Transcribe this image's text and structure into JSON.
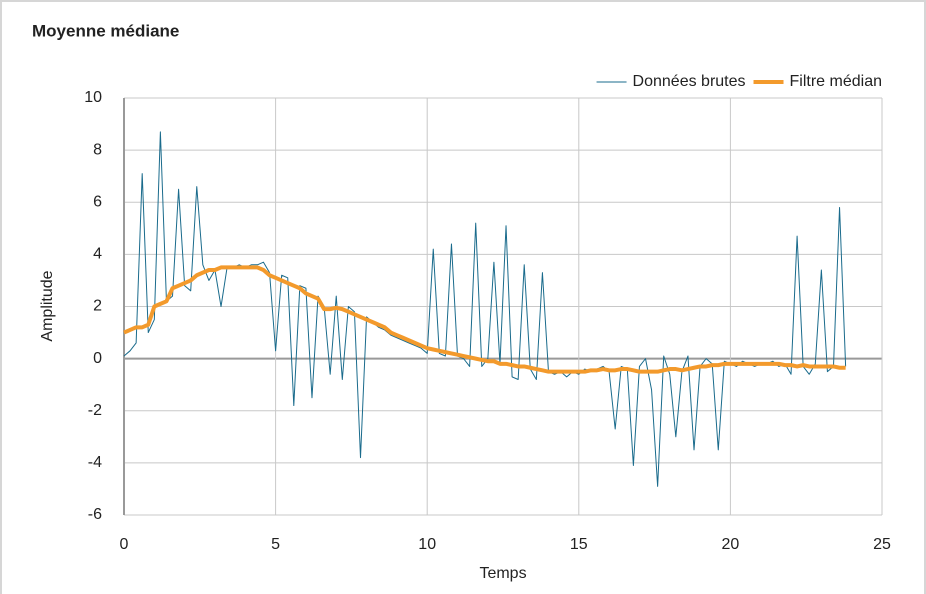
{
  "chart_data": {
    "type": "line",
    "title": "Moyenne médiane",
    "x_label": "Temps",
    "y_label": "Amplitude",
    "x": [
      0,
      0.2,
      0.4,
      0.6,
      0.8,
      1,
      1.2,
      1.4,
      1.6,
      1.8,
      2,
      2.2,
      2.4,
      2.6,
      2.8,
      3,
      3.2,
      3.4,
      3.6,
      3.8,
      4,
      4.2,
      4.4,
      4.6,
      4.8,
      5,
      5.2,
      5.4,
      5.6,
      5.8,
      6,
      6.2,
      6.4,
      6.6,
      6.8,
      7,
      7.2,
      7.4,
      7.6,
      7.8,
      8,
      8.2,
      8.4,
      8.6,
      8.8,
      9,
      9.2,
      9.4,
      9.6,
      9.8,
      10,
      10.2,
      10.4,
      10.6,
      10.8,
      11,
      11.2,
      11.4,
      11.6,
      11.8,
      12,
      12.2,
      12.4,
      12.6,
      12.8,
      13,
      13.2,
      13.4,
      13.6,
      13.8,
      14,
      14.2,
      14.4,
      14.6,
      14.8,
      15,
      15.2,
      15.4,
      15.6,
      15.8,
      16,
      16.2,
      16.4,
      16.6,
      16.8,
      17,
      17.2,
      17.4,
      17.6,
      17.8,
      18,
      18.2,
      18.4,
      18.6,
      18.8,
      19,
      19.2,
      19.4,
      19.6,
      19.8,
      20,
      20.2,
      20.4,
      20.6,
      20.8,
      21,
      21.2,
      21.4,
      21.6,
      21.8,
      22,
      22.2,
      22.4,
      22.6,
      22.8,
      23,
      23.2,
      23.4,
      23.6,
      23.8
    ],
    "series": [
      {
        "name": "Données brutes",
        "color": "#1a6b8c",
        "values": [
          0.1,
          0.3,
          0.6,
          7.1,
          1.0,
          1.5,
          8.7,
          2.2,
          2.4,
          6.5,
          2.8,
          2.6,
          6.6,
          3.6,
          3.0,
          3.4,
          2.0,
          3.5,
          3.5,
          3.6,
          3.5,
          3.6,
          3.6,
          3.7,
          3.3,
          0.3,
          3.2,
          3.1,
          -1.8,
          2.8,
          2.7,
          -1.5,
          2.4,
          2.0,
          -0.6,
          2.4,
          -0.8,
          2.0,
          1.8,
          -3.8,
          1.6,
          1.4,
          1.2,
          1.1,
          0.9,
          0.8,
          0.7,
          0.6,
          0.5,
          0.4,
          0.2,
          4.2,
          0.2,
          0.1,
          4.4,
          0.1,
          0.0,
          -0.3,
          5.2,
          -0.3,
          0.0,
          3.7,
          -0.2,
          5.1,
          -0.7,
          -0.8,
          3.6,
          -0.4,
          -0.8,
          3.3,
          -0.5,
          -0.6,
          -0.5,
          -0.7,
          -0.5,
          -0.6,
          -0.4,
          -0.5,
          -0.4,
          -0.3,
          -0.5,
          -2.7,
          -0.3,
          -0.4,
          -4.1,
          -0.3,
          0.0,
          -1.2,
          -4.9,
          0.1,
          -0.6,
          -3.0,
          -0.5,
          0.1,
          -3.5,
          -0.3,
          0.0,
          -0.2,
          -3.5,
          -0.1,
          -0.2,
          -0.3,
          -0.1,
          -0.2,
          -0.3,
          -0.2,
          -0.2,
          -0.1,
          -0.3,
          -0.2,
          -0.6,
          4.7,
          -0.3,
          -0.6,
          -0.2,
          3.4,
          -0.5,
          -0.3,
          5.8,
          -0.3
        ]
      },
      {
        "name": "Filtre médian",
        "color": "#f39a2c",
        "values": [
          1.0,
          1.1,
          1.2,
          1.2,
          1.3,
          2.0,
          2.1,
          2.2,
          2.7,
          2.8,
          2.9,
          3.0,
          3.2,
          3.3,
          3.4,
          3.4,
          3.5,
          3.5,
          3.5,
          3.5,
          3.5,
          3.5,
          3.5,
          3.4,
          3.2,
          3.1,
          3.0,
          2.9,
          2.8,
          2.7,
          2.5,
          2.4,
          2.3,
          1.9,
          1.9,
          1.95,
          1.9,
          1.8,
          1.7,
          1.6,
          1.5,
          1.4,
          1.3,
          1.2,
          1.0,
          0.9,
          0.8,
          0.7,
          0.6,
          0.5,
          0.4,
          0.35,
          0.3,
          0.25,
          0.2,
          0.15,
          0.1,
          0.05,
          0.0,
          -0.05,
          -0.1,
          -0.1,
          -0.2,
          -0.2,
          -0.25,
          -0.3,
          -0.3,
          -0.35,
          -0.4,
          -0.45,
          -0.5,
          -0.5,
          -0.5,
          -0.5,
          -0.5,
          -0.5,
          -0.5,
          -0.45,
          -0.45,
          -0.4,
          -0.45,
          -0.45,
          -0.4,
          -0.4,
          -0.45,
          -0.5,
          -0.5,
          -0.5,
          -0.5,
          -0.45,
          -0.4,
          -0.4,
          -0.45,
          -0.4,
          -0.35,
          -0.3,
          -0.3,
          -0.25,
          -0.25,
          -0.2,
          -0.2,
          -0.2,
          -0.2,
          -0.2,
          -0.2,
          -0.2,
          -0.2,
          -0.2,
          -0.2,
          -0.25,
          -0.25,
          -0.3,
          -0.25,
          -0.3,
          -0.3,
          -0.3,
          -0.3,
          -0.3,
          -0.35,
          -0.35
        ]
      }
    ],
    "xlim": [
      0,
      25
    ],
    "xticks": [
      0,
      5,
      10,
      15,
      20,
      25
    ],
    "ylim": [
      -6,
      10
    ],
    "yticks": [
      -6,
      -4,
      -2,
      0,
      2,
      4,
      6,
      8,
      10
    ],
    "grid": true,
    "legend": "top-right"
  }
}
